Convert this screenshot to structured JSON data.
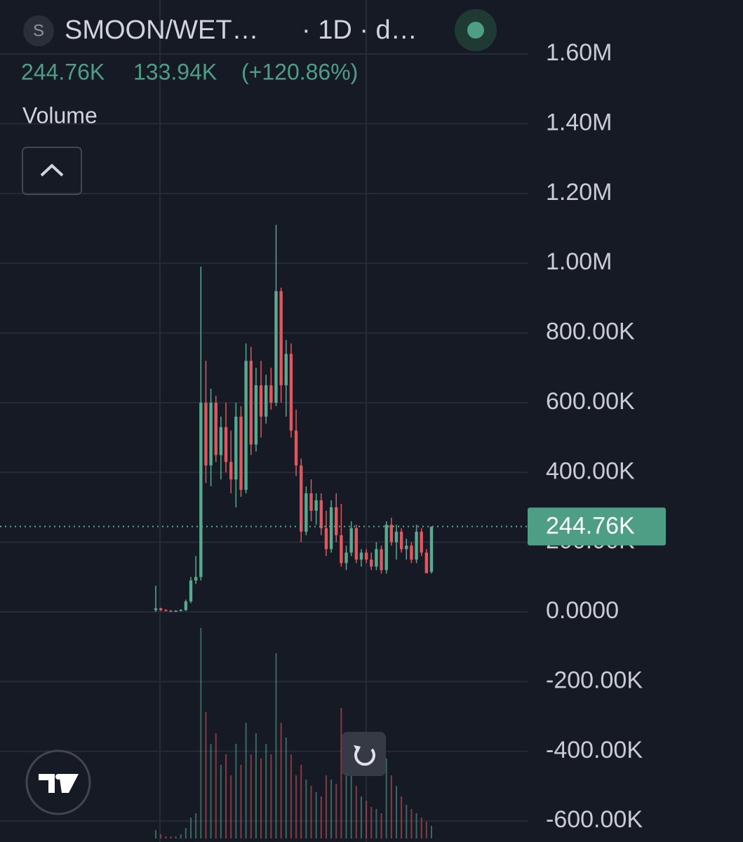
{
  "chart_data": {
    "type": "candlestick",
    "symbol": "SMOON/WET…",
    "interval": "· 1D · d…",
    "symbol_icon": "S",
    "price": "244.76K",
    "change": "133.94K",
    "change_pct": "(+120.86%)",
    "volume_label": "Volume",
    "last_price": {
      "value": 244760,
      "label": "244.76K"
    },
    "up_color": "#5aa98f",
    "down_color": "#e0575f",
    "grid": true,
    "ylim": [
      -660000,
      1755000
    ],
    "yticks": [
      {
        "value": 1600000,
        "label": "1.60M"
      },
      {
        "value": 1400000,
        "label": "1.40M"
      },
      {
        "value": 1200000,
        "label": "1.20M"
      },
      {
        "value": 1000000,
        "label": "1.00M"
      },
      {
        "value": 800000,
        "label": "800.00K"
      },
      {
        "value": 600000,
        "label": "600.00K"
      },
      {
        "value": 400000,
        "label": "400.00K"
      },
      {
        "value": 200000,
        "label": "200.00K"
      },
      {
        "value": 0,
        "label": "0.0000"
      },
      {
        "value": -200000,
        "label": "-200.00K"
      },
      {
        "value": -400000,
        "label": "-400.00K"
      },
      {
        "value": -600000,
        "label": "-600.00K"
      }
    ],
    "open": [
      5000,
      10000,
      5000,
      3000,
      2000,
      3000,
      5000,
      30000,
      90000,
      100000,
      600000,
      420000,
      600000,
      450000,
      530000,
      430000,
      380000,
      560000,
      350000,
      720000,
      480000,
      650000,
      560000,
      650000,
      600000,
      920000,
      650000,
      740000,
      520000,
      420000,
      230000,
      340000,
      290000,
      320000,
      240000,
      180000,
      300000,
      220000,
      140000,
      170000,
      240000,
      150000,
      170000,
      150000,
      130000,
      180000,
      120000,
      250000,
      200000,
      230000,
      180000,
      190000,
      150000,
      230000,
      170000,
      115000
    ],
    "high": [
      75000,
      12000,
      8000,
      6000,
      5000,
      8000,
      35000,
      100000,
      160000,
      990000,
      720000,
      640000,
      620000,
      560000,
      600000,
      520000,
      600000,
      590000,
      770000,
      760000,
      700000,
      720000,
      680000,
      700000,
      1110000,
      930000,
      780000,
      770000,
      580000,
      440000,
      360000,
      380000,
      340000,
      340000,
      290000,
      320000,
      340000,
      310000,
      190000,
      260000,
      250000,
      180000,
      180000,
      170000,
      200000,
      190000,
      260000,
      270000,
      250000,
      240000,
      210000,
      200000,
      250000,
      240000,
      180000,
      244760
    ],
    "low": [
      0,
      2000,
      2000,
      1000,
      1000,
      2000,
      3000,
      25000,
      80000,
      90000,
      370000,
      360000,
      430000,
      380000,
      400000,
      340000,
      300000,
      330000,
      340000,
      450000,
      460000,
      500000,
      540000,
      580000,
      590000,
      600000,
      560000,
      500000,
      390000,
      200000,
      220000,
      260000,
      250000,
      220000,
      160000,
      170000,
      200000,
      130000,
      120000,
      160000,
      140000,
      130000,
      140000,
      120000,
      120000,
      110000,
      110000,
      190000,
      150000,
      170000,
      150000,
      140000,
      140000,
      160000,
      110820,
      110000
    ],
    "close": [
      10000,
      5000,
      3000,
      2000,
      3000,
      5000,
      30000,
      90000,
      100000,
      600000,
      420000,
      600000,
      450000,
      530000,
      430000,
      380000,
      560000,
      350000,
      720000,
      480000,
      650000,
      560000,
      650000,
      600000,
      920000,
      650000,
      740000,
      520000,
      420000,
      230000,
      340000,
      290000,
      320000,
      240000,
      180000,
      300000,
      220000,
      140000,
      170000,
      240000,
      150000,
      170000,
      150000,
      130000,
      180000,
      120000,
      250000,
      200000,
      230000,
      180000,
      190000,
      150000,
      230000,
      170000,
      110820,
      244760
    ],
    "volume": [
      4,
      2,
      1,
      1,
      1,
      2,
      5,
      10,
      12,
      100,
      60,
      45,
      50,
      35,
      40,
      30,
      45,
      35,
      55,
      40,
      50,
      38,
      45,
      40,
      88,
      55,
      48,
      40,
      30,
      35,
      28,
      25,
      22,
      20,
      30,
      28,
      26,
      62,
      45,
      35,
      25,
      20,
      18,
      15,
      14,
      12,
      38,
      30,
      25,
      20,
      16,
      14,
      12,
      10,
      8,
      6
    ],
    "volume_ylim": [
      0,
      100
    ]
  }
}
